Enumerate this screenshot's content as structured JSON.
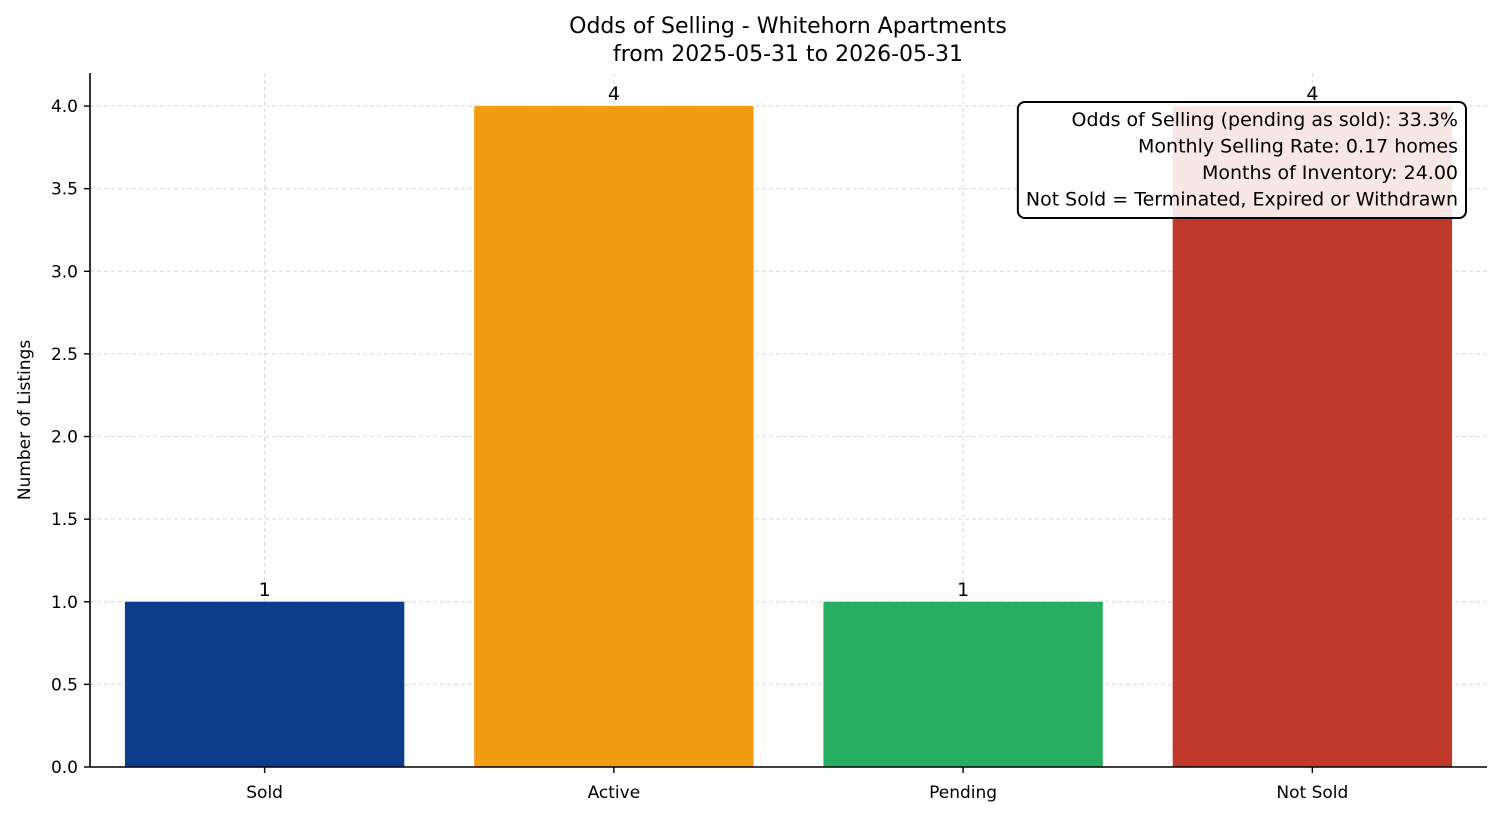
{
  "chart_data": {
    "type": "bar",
    "title": "Odds of Selling - Whitehorn Apartments",
    "subtitle": "from 2025-05-31 to 2026-05-31",
    "xlabel": "",
    "ylabel": "Number of Listings",
    "categories": [
      "Sold",
      "Active",
      "Pending",
      "Not Sold"
    ],
    "values": [
      1,
      4,
      1,
      4
    ],
    "data_labels": [
      "1",
      "4",
      "1",
      "4"
    ],
    "colors": [
      "#0b3d8c",
      "#f39c12",
      "#27ae60",
      "#c0392b"
    ],
    "ylim": [
      0,
      4.2
    ],
    "yticks": [
      0.0,
      0.5,
      1.0,
      1.5,
      2.0,
      2.5,
      3.0,
      3.5,
      4.0
    ],
    "ytick_labels": [
      "0.0",
      "0.5",
      "1.0",
      "1.5",
      "2.0",
      "2.5",
      "3.0",
      "3.5",
      "4.0"
    ],
    "grid": true,
    "legend": "none",
    "annotation_box": {
      "position": "top-right",
      "lines": [
        "Odds of Selling (pending as sold): 33.3%",
        "Monthly Selling Rate: 0.17 homes",
        "Months of Inventory: 24.00",
        "Not Sold = Terminated, Expired or Withdrawn"
      ]
    }
  }
}
